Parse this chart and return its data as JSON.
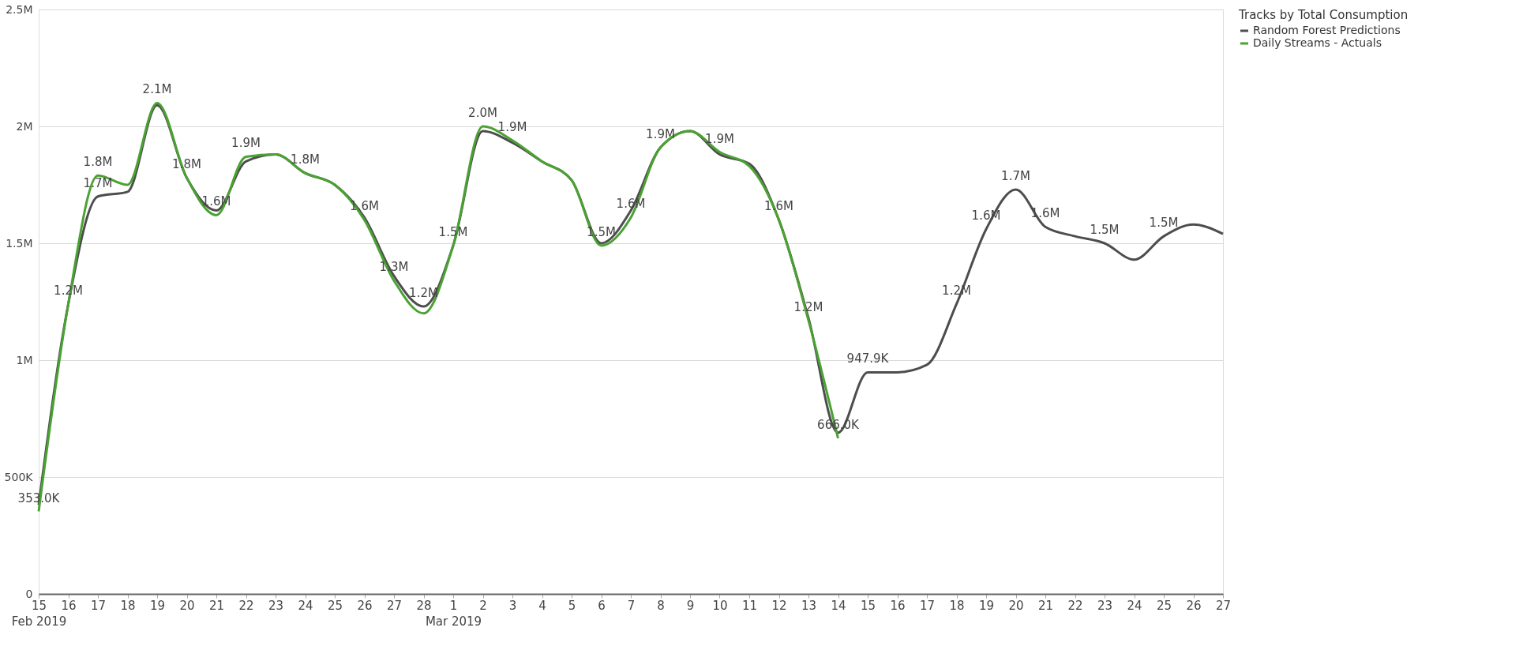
{
  "chart_data": {
    "type": "line",
    "legend_title": "Tracks by Total Consumption",
    "legend": "right",
    "grid": "y",
    "marker": "none",
    "line_style": "solid",
    "xlim": [
      "2019-02-15",
      "2019-03-27"
    ],
    "xticks": [
      {
        "value": "2019-02-15",
        "label": "15\nFeb 2019"
      },
      {
        "value": "2019-02-16",
        "label": "16"
      },
      {
        "value": "2019-02-17",
        "label": "17"
      },
      {
        "value": "2019-02-18",
        "label": "18"
      },
      {
        "value": "2019-02-19",
        "label": "19"
      },
      {
        "value": "2019-02-20",
        "label": "20"
      },
      {
        "value": "2019-02-21",
        "label": "21"
      },
      {
        "value": "2019-02-22",
        "label": "22"
      },
      {
        "value": "2019-02-23",
        "label": "23"
      },
      {
        "value": "2019-02-24",
        "label": "24"
      },
      {
        "value": "2019-02-25",
        "label": "25"
      },
      {
        "value": "2019-02-26",
        "label": "26"
      },
      {
        "value": "2019-02-27",
        "label": "27"
      },
      {
        "value": "2019-02-28",
        "label": "28"
      },
      {
        "value": "2019-03-01",
        "label": "1\nMar 2019"
      },
      {
        "value": "2019-03-02",
        "label": "2"
      },
      {
        "value": "2019-03-03",
        "label": "3"
      },
      {
        "value": "2019-03-04",
        "label": "4"
      },
      {
        "value": "2019-03-05",
        "label": "5"
      },
      {
        "value": "2019-03-06",
        "label": "6"
      },
      {
        "value": "2019-03-07",
        "label": "7"
      },
      {
        "value": "2019-03-08",
        "label": "8"
      },
      {
        "value": "2019-03-09",
        "label": "9"
      },
      {
        "value": "2019-03-10",
        "label": "10"
      },
      {
        "value": "2019-03-11",
        "label": "11"
      },
      {
        "value": "2019-03-12",
        "label": "12"
      },
      {
        "value": "2019-03-13",
        "label": "13"
      },
      {
        "value": "2019-03-14",
        "label": "14"
      },
      {
        "value": "2019-03-15",
        "label": "15"
      },
      {
        "value": "2019-03-16",
        "label": "16"
      },
      {
        "value": "2019-03-17",
        "label": "17"
      },
      {
        "value": "2019-03-18",
        "label": "18"
      },
      {
        "value": "2019-03-19",
        "label": "19"
      },
      {
        "value": "2019-03-20",
        "label": "20"
      },
      {
        "value": "2019-03-21",
        "label": "21"
      },
      {
        "value": "2019-03-22",
        "label": "22"
      },
      {
        "value": "2019-03-23",
        "label": "23"
      },
      {
        "value": "2019-03-24",
        "label": "24"
      },
      {
        "value": "2019-03-25",
        "label": "25"
      },
      {
        "value": "2019-03-26",
        "label": "26"
      },
      {
        "value": "2019-03-27",
        "label": "27"
      }
    ],
    "ylim": [
      0,
      2500000
    ],
    "yticks": [
      0,
      {
        "value": 500000,
        "label": "500K"
      },
      {
        "value": 1000000,
        "label": "1M"
      },
      {
        "value": 1500000,
        "label": "1.5M"
      },
      {
        "value": 2000000,
        "label": "2M"
      },
      {
        "value": 2500000,
        "label": "2.5M"
      }
    ],
    "series": [
      {
        "name": "Random Forest Predictions",
        "color": "#4d4d4d",
        "x": [
          "2019-02-15",
          "2019-02-16",
          "2019-02-17",
          "2019-02-18",
          "2019-02-19",
          "2019-02-20",
          "2019-02-21",
          "2019-02-22",
          "2019-02-23",
          "2019-02-24",
          "2019-02-25",
          "2019-02-26",
          "2019-02-27",
          "2019-02-28",
          "2019-03-01",
          "2019-03-02",
          "2019-03-03",
          "2019-03-04",
          "2019-03-05",
          "2019-03-06",
          "2019-03-07",
          "2019-03-08",
          "2019-03-09",
          "2019-03-10",
          "2019-03-11",
          "2019-03-12",
          "2019-03-13",
          "2019-03-14",
          "2019-03-15",
          "2019-03-16",
          "2019-03-17",
          "2019-03-18",
          "2019-03-19",
          "2019-03-20",
          "2019-03-21",
          "2019-03-22",
          "2019-03-23",
          "2019-03-24",
          "2019-03-25",
          "2019-03-26",
          "2019-03-27"
        ],
        "values": [
          380000,
          1240000,
          1700000,
          1720000,
          2090000,
          1780000,
          1640000,
          1850000,
          1880000,
          1800000,
          1750000,
          1610000,
          1360000,
          1230000,
          1490000,
          1980000,
          1930000,
          1850000,
          1770000,
          1500000,
          1640000,
          1910000,
          1980000,
          1880000,
          1840000,
          1600000,
          1180000,
          690000,
          947900,
          948000,
          980000,
          1240000,
          1560000,
          1730000,
          1570000,
          1530000,
          1500000,
          1430000,
          1530000,
          1580000,
          1540000
        ],
        "value_labels": [
          null,
          null,
          "1.7M",
          null,
          null,
          null,
          null,
          null,
          null,
          null,
          null,
          null,
          null,
          "1.2M",
          null,
          null,
          null,
          null,
          null,
          null,
          null,
          null,
          null,
          null,
          null,
          null,
          null,
          null,
          "947.9K",
          null,
          null,
          "1.2M",
          "1.6M",
          "1.7M",
          "1.6M",
          null,
          "1.5M",
          null,
          "1.5M",
          null,
          null
        ]
      },
      {
        "name": "Daily Streams - Actuals",
        "color": "#4aa232",
        "x": [
          "2019-02-15",
          "2019-02-16",
          "2019-02-17",
          "2019-02-18",
          "2019-02-19",
          "2019-02-20",
          "2019-02-21",
          "2019-02-22",
          "2019-02-23",
          "2019-02-24",
          "2019-02-25",
          "2019-02-26",
          "2019-02-27",
          "2019-02-28",
          "2019-03-01",
          "2019-03-02",
          "2019-03-03",
          "2019-03-04",
          "2019-03-05",
          "2019-03-06",
          "2019-03-07",
          "2019-03-08",
          "2019-03-09",
          "2019-03-10",
          "2019-03-11",
          "2019-03-12",
          "2019-03-13",
          "2019-03-14"
        ],
        "values": [
          353000,
          1240000,
          1790000,
          1750000,
          2100000,
          1780000,
          1620000,
          1870000,
          1880000,
          1800000,
          1750000,
          1600000,
          1340000,
          1200000,
          1490000,
          2000000,
          1940000,
          1850000,
          1770000,
          1490000,
          1610000,
          1910000,
          1980000,
          1890000,
          1830000,
          1600000,
          1170000,
          666000
        ],
        "value_labels": [
          "353.0K",
          "1.2M",
          "1.8M",
          null,
          "2.1M",
          "1.8M",
          "1.6M",
          "1.9M",
          null,
          "1.8M",
          null,
          "1.6M",
          "1.3M",
          null,
          "1.5M",
          "2.0M",
          "1.9M",
          null,
          null,
          "1.5M",
          "1.6M",
          "1.9M",
          null,
          "1.9M",
          null,
          "1.6M",
          "1.2M",
          "666.0K"
        ]
      }
    ]
  }
}
